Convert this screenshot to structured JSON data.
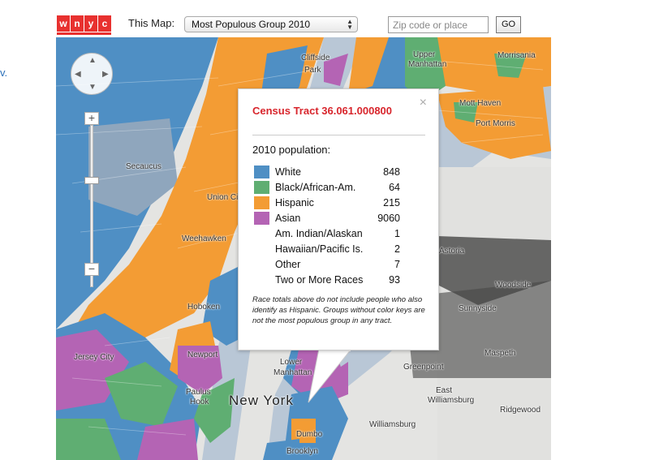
{
  "header": {
    "logo_letters": [
      "w",
      "n",
      "y",
      "c"
    ],
    "map_label": "This Map:",
    "map_select_value": "Most Populous Group 2010",
    "zip_placeholder": "Zip code or place",
    "go_label": "GO",
    "left_link": "v."
  },
  "colors": {
    "white": "#4f8fc4",
    "black": "#5fae72",
    "hispanic": "#f39c34",
    "asian": "#b464b4",
    "brand": "#e8312f",
    "title": "#d8252c"
  },
  "map": {
    "places": [
      "Cliffside",
      "Park",
      "Secaucus",
      "Union City",
      "Weehawken",
      "Hoboken",
      "Jersey City",
      "Newport",
      "Paulus",
      "Hook",
      "New York",
      "Lower",
      "Manhattan",
      "Dumbo",
      "Brooklyn",
      "Astoria",
      "Woodside",
      "Sunnyside",
      "Maspeth",
      "Greenpoint",
      "East",
      "Williamsburg",
      "Williamsburg",
      "Ridgewood",
      "Morrisania",
      "Mott Haven",
      "Port Morris",
      "Upper",
      "Manhattan"
    ],
    "zoom_in": "+",
    "zoom_out": "−"
  },
  "popup": {
    "close": "×",
    "title": "Census Tract 36.061.000800",
    "population_label": "2010 population:",
    "races": [
      {
        "name": "White",
        "value": "848",
        "color": "#4f8fc4"
      },
      {
        "name": "Black/African-Am.",
        "value": "64",
        "color": "#5fae72"
      },
      {
        "name": "Hispanic",
        "value": "215",
        "color": "#f39c34"
      },
      {
        "name": "Asian",
        "value": "9060",
        "color": "#b464b4"
      },
      {
        "name": "Am. Indian/Alaskan",
        "value": "1",
        "color": ""
      },
      {
        "name": "Hawaiian/Pacific Is.",
        "value": "2",
        "color": ""
      },
      {
        "name": "Other",
        "value": "7",
        "color": ""
      },
      {
        "name": "Two or More Races",
        "value": "93",
        "color": ""
      }
    ],
    "note": "Race totals above do not include people who also identify as Hispanic. Groups without color keys are not the most populous group in any tract."
  }
}
